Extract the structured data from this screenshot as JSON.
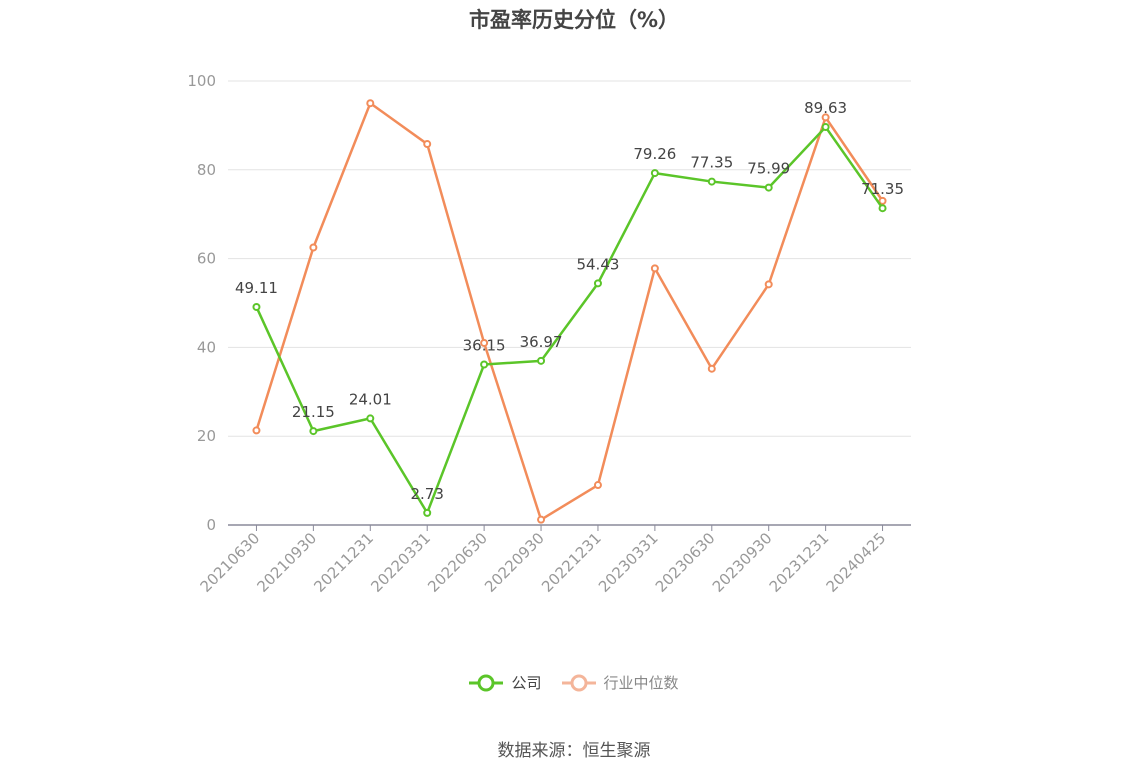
{
  "chart_data": {
    "type": "line",
    "title": "市盈率历史分位（%）",
    "categories": [
      "20210630",
      "20210930",
      "20211231",
      "20220331",
      "20220630",
      "20220930",
      "20221231",
      "20230331",
      "20230630",
      "20230930",
      "20231231",
      "20240425"
    ],
    "series": [
      {
        "name": "公司",
        "color": "#5bc529",
        "values": [
          49.11,
          21.15,
          24.01,
          2.73,
          36.15,
          36.97,
          54.43,
          79.26,
          77.35,
          75.99,
          89.63,
          71.35
        ],
        "show_labels": true
      },
      {
        "name": "行业中位数",
        "color": "#f28c5a",
        "values": [
          21.3,
          62.5,
          95.0,
          85.8,
          41.0,
          1.2,
          9.0,
          57.8,
          35.2,
          54.2,
          91.8,
          73.0
        ],
        "show_labels": false
      }
    ],
    "ylim": [
      0,
      100
    ],
    "yticks": [
      0,
      20,
      40,
      60,
      80,
      100
    ],
    "grid": true,
    "legend_position": "bottom"
  },
  "legend": {
    "items": [
      "公司",
      "行业中位数"
    ],
    "colors": [
      "#5bc529",
      "#f4b59a"
    ],
    "text_colors": [
      "#444444",
      "#888888"
    ]
  },
  "source": "数据来源：恒生聚源"
}
